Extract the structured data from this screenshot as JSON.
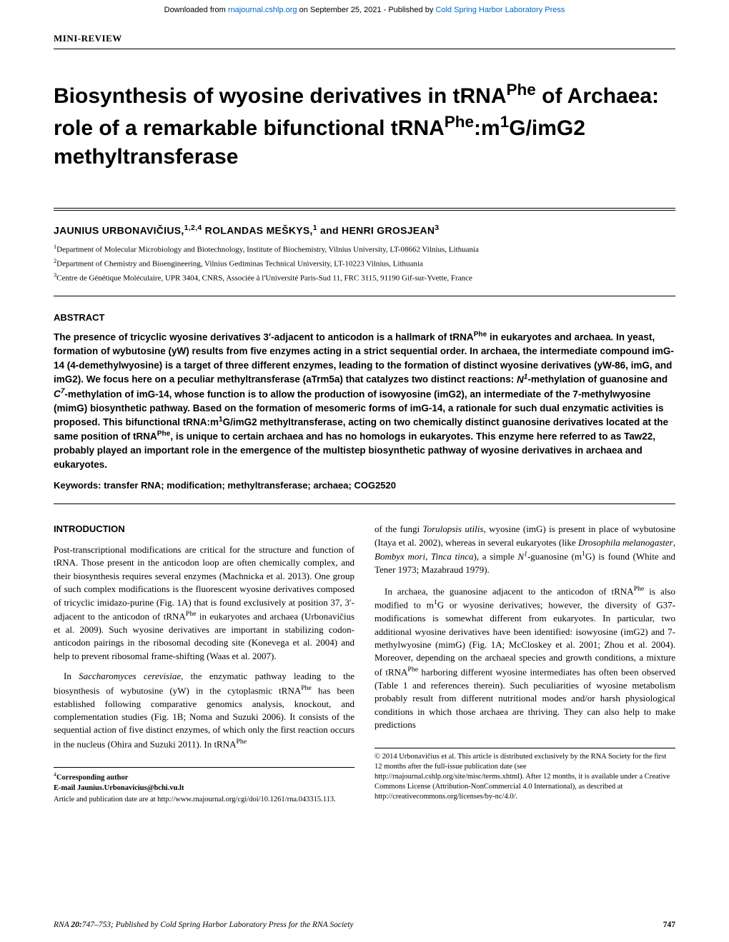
{
  "banner": {
    "prefix": "Downloaded from ",
    "link1_text": "rnajournal.cshlp.org",
    "middle": " on September 25, 2021 - Published by ",
    "link2_text": "Cold Spring Harbor Laboratory Press"
  },
  "category": "MINI-REVIEW",
  "title": "Biosynthesis of wyosine derivatives in tRNAPhe of Archaea: role of a remarkable bifunctional tRNAPhe:m1G/imG2 methyltransferase",
  "authors": "JAUNIUS URBONAVIČIUS,1,2,4 ROLANDAS MEŠKYS,1 and HENRI GROSJEAN3",
  "affiliations": {
    "a1": "1Department of Molecular Microbiology and Biotechnology, Institute of Biochemistry, Vilnius University, LT-08662 Vilnius, Lithuania",
    "a2": "2Department of Chemistry and Bioengineering, Vilnius Gediminas Technical University, LT-10223 Vilnius, Lithuania",
    "a3": "3Centre de Génétique Moléculaire, UPR 3404, CNRS, Associée à l'Université Paris-Sud 11, FRC 3115, 91190 Gif-sur-Yvette, France"
  },
  "abstract_label": "ABSTRACT",
  "abstract_text": "The presence of tricyclic wyosine derivatives 3′-adjacent to anticodon is a hallmark of tRNAPhe in eukaryotes and archaea. In yeast, formation of wybutosine (yW) results from five enzymes acting in a strict sequential order. In archaea, the intermediate compound imG-14 (4-demethylwyosine) is a target of three different enzymes, leading to the formation of distinct wyosine derivatives (yW-86, imG, and imG2). We focus here on a peculiar methyltransferase (aTrm5a) that catalyzes two distinct reactions: N1-methylation of guanosine and C7-methylation of imG-14, whose function is to allow the production of isowyosine (imG2), an intermediate of the 7-methylwyosine (mimG) biosynthetic pathway. Based on the formation of mesomeric forms of imG-14, a rationale for such dual enzymatic activities is proposed. This bifunctional tRNA:m1G/imG2 methyltransferase, acting on two chemically distinct guanosine derivatives located at the same position of tRNAPhe, is unique to certain archaea and has no homologs in eukaryotes. This enzyme here referred to as Taw22, probably played an important role in the emergence of the multistep biosynthetic pathway of wyosine derivatives in archaea and eukaryotes.",
  "keywords_label": "Keywords:",
  "keywords_text": " transfer RNA; modification; methyltransferase; archaea; COG2520",
  "intro_heading": "INTRODUCTION",
  "left_column": {
    "p1": "Post-transcriptional modifications are critical for the structure and function of tRNA. Those present in the anticodon loop are often chemically complex, and their biosynthesis requires several enzymes (Machnicka et al. 2013). One group of such complex modifications is the fluorescent wyosine derivatives composed of tricyclic imidazo-purine (Fig. 1A) that is found exclusively at position 37, 3′-adjacent to the anticodon of tRNAPhe in eukaryotes and archaea (Urbonavičius et al. 2009). Such wyosine derivatives are important in stabilizing codon-anticodon pairings in the ribosomal decoding site (Konevega et al. 2004) and help to prevent ribosomal frame-shifting (Waas et al. 2007).",
    "p2": "In Saccharomyces cerevisiae, the enzymatic pathway leading to the biosynthesis of wybutosine (yW) in the cytoplasmic tRNAPhe has been established following comparative genomics analysis, knockout, and complementation studies (Fig. 1B; Noma and Suzuki 2006). It consists of the sequential action of five distinct enzymes, of which only the first reaction occurs in the nucleus (Ohira and Suzuki 2011). In tRNAPhe"
  },
  "right_column": {
    "p1": "of the fungi Torulopsis utilis, wyosine (imG) is present in place of wybutosine (Itaya et al. 2002), whereas in several eukaryotes (like Drosophila melanogaster, Bombyx mori, Tinca tinca), a simple N1-guanosine (m1G) is found (White and Tener 1973; Mazabraud 1979).",
    "p2": "In archaea, the guanosine adjacent to the anticodon of tRNAPhe is also modified to m1G or wyosine derivatives; however, the diversity of G37-modifications is somewhat different from eukaryotes. In particular, two additional wyosine derivatives have been identified: isowyosine (imG2) and 7-methylwyosine (mimG) (Fig. 1A; McCloskey et al. 2001; Zhou et al. 2004). Moreover, depending on the archaeal species and growth conditions, a mixture of tRNAPhe harboring different wyosine intermediates has often been observed (Table 1 and references therein). Such peculiarities of wyosine metabolism probably result from different nutritional modes and/or harsh physiological conditions in which those archaea are thriving. They can also help to make predictions"
  },
  "footnotes_left": {
    "f1": "4Corresponding author",
    "f2": "E-mail Jaunius.Urbonavicius@bchi.vu.lt",
    "f3": "Article and publication date are at http://www.rnajournal.org/cgi/doi/10.1261/rna.043315.113."
  },
  "footnotes_right": {
    "f1": "© 2014 Urbonavičius et al.   This article is distributed exclusively by the RNA Society for the first 12 months after the full-issue publication date (see http://rnajournal.cshlp.org/site/misc/terms.xhtml). After 12 months, it is available under a Creative Commons License (Attribution-NonCommercial 4.0 International), as described at http://creativecommons.org/licenses/by-nc/4.0/."
  },
  "footer": {
    "citation": "RNA 20:747–753; Published by Cold Spring Harbor Laboratory Press for the RNA Society",
    "page": "747"
  }
}
